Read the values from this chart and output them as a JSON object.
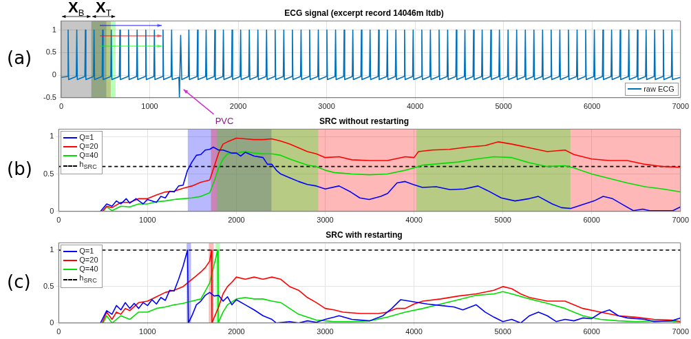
{
  "chart_data": [
    {
      "type": "line",
      "title": "ECG signal (excerpt record 14046m ltdb)",
      "xlim": [
        0,
        7000
      ],
      "ylim": [
        -0.5,
        1.2
      ],
      "xticks": [
        0,
        1000,
        2000,
        3000,
        4000,
        5000,
        6000,
        7000
      ],
      "yticks": [
        -0.5,
        0,
        0.5,
        1
      ],
      "grid": true,
      "legend": "bottom right",
      "annotations": [
        "(a)",
        {
          "text": "X$_{B}$",
          "x": 170,
          "y": 1.2
        },
        {
          "text": "X$_{T}$",
          "x": 478,
          "y": 1.2
        },
        "PVC"
      ],
      "bands": [
        {
          "axis": "x",
          "from": 0,
          "to": 340,
          "color": "#333333"
        },
        {
          "axis": "x",
          "from": 340,
          "to": 510,
          "color": "#0000ff"
        },
        {
          "axis": "x",
          "from": 340,
          "to": 560,
          "color": "#ff0000"
        },
        {
          "axis": "x",
          "from": 340,
          "to": 615,
          "color": "#00ff00"
        }
      ],
      "series": [
        {
          "name": "raw ECG",
          "color": "#0072bd",
          "x": [
            0,
            72,
            78,
            84,
            170,
            176,
            182,
            267,
            273,
            279,
            365,
            371,
            377,
            462,
            468,
            474,
            560,
            566,
            572,
            657,
            663,
            669,
            755,
            761,
            767,
            852,
            858,
            864,
            950,
            956,
            962,
            1047,
            1053,
            1059,
            1145,
            1151,
            1157,
            1242,
            1248,
            1254,
            1330,
            1336,
            1350,
            1362,
            1437,
            1443,
            1449,
            1535,
            1541,
            1547,
            1632,
            1638,
            1644,
            1730,
            1736,
            1742,
            1827,
            1833,
            1839,
            1925,
            1931,
            1937,
            2022,
            2028,
            2034,
            2120,
            2126,
            2132,
            2217,
            2223,
            2229,
            2315,
            2321,
            2327,
            2412,
            2418,
            2424,
            2510,
            2516,
            2522,
            2607,
            2613,
            2619,
            2705,
            2711,
            2717,
            2802,
            2808,
            2814,
            2900,
            2906,
            2912,
            2997,
            3003,
            3009,
            3095,
            3101,
            3107,
            3192,
            3198,
            3204,
            3290,
            3296,
            3302,
            3387,
            3393,
            3399,
            3485,
            3491,
            3497,
            3582,
            3588,
            3594,
            3680,
            3686,
            3692,
            3777,
            3783,
            3789,
            3875,
            3881,
            3887,
            3972,
            3978,
            3984,
            4070,
            4076,
            4082,
            4167,
            4173,
            4179,
            4265,
            4271,
            4277,
            4362,
            4368,
            4374,
            4460,
            4466,
            4472,
            4557,
            4563,
            4569,
            4655,
            4661,
            4667,
            4752,
            4758,
            4764,
            4850,
            4856,
            4862,
            4947,
            4953,
            4959,
            5045,
            5051,
            5057,
            5142,
            5148,
            5154,
            5240,
            5246,
            5252,
            5337,
            5343,
            5349,
            5435,
            5441,
            5447,
            5532,
            5538,
            5544,
            5630,
            5636,
            5642,
            5727,
            5733,
            5739,
            5825,
            5831,
            5837,
            5922,
            5928,
            5934,
            6020,
            6026,
            6032,
            6117,
            6123,
            6129,
            6215,
            6221,
            6227,
            6312,
            6318,
            6324,
            6410,
            6416,
            6422,
            6507,
            6513,
            6519,
            6605,
            6611,
            6617,
            6702,
            6708,
            6714,
            6800,
            6806,
            6812,
            6897,
            6903,
            6909,
            7000
          ],
          "values": [
            -0.05,
            -0.03,
            1,
            -0.1,
            -0.03,
            1,
            -0.1,
            -0.03,
            1,
            -0.1,
            -0.03,
            1,
            -0.1,
            -0.03,
            1,
            -0.1,
            -0.03,
            1,
            -0.1,
            -0.03,
            1,
            -0.1,
            -0.03,
            1,
            -0.1,
            -0.03,
            1,
            -0.1,
            -0.03,
            1,
            -0.1,
            -0.03,
            1,
            -0.1,
            -0.03,
            1,
            -0.1,
            -0.03,
            1,
            -0.1,
            -0.05,
            -0.5,
            0.88,
            -0.1,
            -0.03,
            1,
            -0.1,
            -0.03,
            1,
            -0.1,
            -0.03,
            1,
            -0.1,
            -0.03,
            1,
            -0.1,
            -0.03,
            1,
            -0.1,
            -0.03,
            1,
            -0.1,
            -0.03,
            1,
            -0.1,
            -0.03,
            1,
            -0.1,
            -0.03,
            1,
            -0.1,
            -0.03,
            1,
            -0.1,
            -0.03,
            1,
            -0.1,
            -0.03,
            1,
            -0.1,
            -0.03,
            1,
            -0.1,
            -0.03,
            1,
            -0.1,
            -0.03,
            1,
            -0.1,
            -0.03,
            1,
            -0.1,
            -0.03,
            1,
            -0.1,
            -0.03,
            1,
            -0.1,
            -0.03,
            1,
            -0.1,
            -0.03,
            1,
            -0.1,
            -0.03,
            1,
            -0.1,
            -0.03,
            1,
            -0.1,
            -0.03,
            1,
            -0.1,
            -0.03,
            1,
            -0.1,
            -0.03,
            1,
            -0.1,
            -0.03,
            1,
            -0.1,
            -0.03,
            1,
            -0.1,
            -0.03,
            1,
            -0.1,
            -0.03,
            1,
            -0.1,
            -0.03,
            1,
            -0.1,
            -0.03,
            1,
            -0.1,
            -0.03,
            1,
            -0.1,
            -0.03,
            1,
            -0.1,
            -0.03,
            1,
            -0.1,
            -0.03,
            1,
            -0.1,
            -0.03,
            1,
            -0.1,
            -0.03,
            1,
            -0.1,
            -0.03,
            1,
            -0.1,
            -0.03,
            1,
            -0.1,
            -0.03,
            1,
            -0.1,
            -0.03,
            1,
            -0.1,
            -0.03,
            1,
            -0.1,
            -0.03,
            1,
            -0.1,
            -0.03,
            1,
            -0.1,
            -0.03,
            1,
            -0.1,
            -0.03,
            1,
            -0.1,
            -0.03,
            1,
            -0.1,
            -0.03,
            1,
            -0.1,
            -0.03,
            1,
            -0.1,
            -0.03,
            1,
            -0.1,
            -0.03,
            1,
            -0.1,
            -0.03,
            1,
            -0.1,
            -0.03,
            1,
            -0.1,
            -0.03,
            1,
            -0.1,
            -0.03,
            1,
            -0.1,
            -0.03,
            1,
            -0.1,
            -0.03,
            1,
            -0.1,
            -0.05
          ]
        }
      ]
    },
    {
      "type": "line",
      "title": "SRC without restarting",
      "xlim": [
        0,
        7000
      ],
      "ylim": [
        0,
        1.1
      ],
      "xticks": [
        0,
        1000,
        2000,
        3000,
        4000,
        5000,
        6000,
        7000
      ],
      "yticks": [
        0,
        0.5,
        1
      ],
      "grid": true,
      "legend": "top left",
      "annotations": [
        "(b)"
      ],
      "bands": [
        {
          "axis": "x",
          "from": 1453,
          "to": 2395,
          "color": "#0000ff"
        },
        {
          "axis": "x",
          "from": 1714,
          "to": 7000,
          "color": "#ff0000"
        },
        {
          "axis": "x",
          "from": 1779,
          "to": 2922,
          "color": "#00ff00"
        },
        {
          "axis": "x",
          "from": 4025,
          "to": 5761,
          "color": "#00ff00"
        }
      ],
      "series": [
        {
          "name": "Q=1",
          "color": "#0000ff",
          "x": [
            470,
            540,
            600,
            650,
            700,
            760,
            800,
            870,
            950,
            1000,
            1100,
            1150,
            1200,
            1250,
            1300,
            1350,
            1400,
            1450,
            1500,
            1550,
            1600,
            1650,
            1700,
            1740,
            1800,
            1850,
            1900,
            1950,
            2000,
            2050,
            2100,
            2200,
            2300,
            2350,
            2400,
            2450,
            2500,
            2600,
            2700,
            2800,
            2900,
            3000,
            3156,
            3286,
            3390,
            3495,
            3625,
            3703,
            3808,
            3900,
            3990,
            4094,
            4250,
            4407,
            4564,
            4720,
            4825,
            4982,
            5138,
            5295,
            5400,
            5556,
            5660,
            5765,
            5843,
            6026,
            6130,
            6235,
            6365,
            6470,
            6574,
            6652,
            6809,
            6913,
            7000
          ],
          "values": [
            0,
            0.1,
            0.07,
            0.14,
            0.1,
            0.17,
            0.11,
            0.17,
            0.1,
            0.16,
            0.12,
            0.2,
            0.18,
            0.27,
            0.26,
            0.34,
            0.35,
            0.55,
            0.66,
            0.75,
            0.76,
            0.82,
            0.83,
            0.86,
            0.82,
            0.82,
            0.8,
            0.78,
            0.78,
            0.74,
            0.79,
            0.74,
            0.72,
            0.63,
            0.63,
            0.55,
            0.5,
            0.45,
            0.4,
            0.36,
            0.34,
            0.3,
            0.34,
            0.26,
            0.18,
            0.16,
            0.2,
            0.24,
            0.38,
            0.4,
            0.36,
            0.32,
            0.33,
            0.29,
            0.3,
            0.34,
            0.28,
            0.18,
            0.14,
            0.17,
            0.2,
            0.1,
            0.05,
            0.04,
            0.07,
            0.14,
            0.2,
            0.17,
            0.08,
            0.01,
            0.03,
            0.01,
            0.01,
            0.01,
            0.06
          ]
        },
        {
          "name": "Q=20",
          "color": "#ff0000",
          "x": [
            490,
            540,
            600,
            700,
            800,
            900,
            1000,
            1100,
            1200,
            1300,
            1400,
            1500,
            1600,
            1700,
            1750,
            1800,
            1850,
            1900,
            2000,
            2100,
            2200,
            2300,
            2400,
            2500,
            2600,
            2700,
            2800,
            2900,
            3000,
            3156,
            3300,
            3500,
            3700,
            3900,
            4000,
            4050,
            4200,
            4400,
            4600,
            4800,
            4950,
            5100,
            5300,
            5500,
            5700,
            5800,
            6000,
            6200,
            6400,
            6600,
            6800,
            7000
          ],
          "values": [
            0,
            0.07,
            0.05,
            0.12,
            0.12,
            0.17,
            0.17,
            0.22,
            0.26,
            0.27,
            0.31,
            0.34,
            0.39,
            0.42,
            0.6,
            0.78,
            0.9,
            0.93,
            0.98,
            0.97,
            0.96,
            0.96,
            0.97,
            0.94,
            0.9,
            0.85,
            0.8,
            0.77,
            0.72,
            0.73,
            0.69,
            0.68,
            0.68,
            0.73,
            0.72,
            0.8,
            0.82,
            0.83,
            0.86,
            0.88,
            0.93,
            0.9,
            0.85,
            0.8,
            0.82,
            0.76,
            0.7,
            0.68,
            0.68,
            0.63,
            0.6,
            0.59
          ]
        },
        {
          "name": "Q=40",
          "color": "#00dd00",
          "x": [
            500,
            540,
            600,
            700,
            800,
            900,
            1000,
            1100,
            1200,
            1300,
            1400,
            1500,
            1600,
            1700,
            1750,
            1800,
            1850,
            1900,
            2000,
            2100,
            2200,
            2300,
            2400,
            2500,
            2600,
            2700,
            2800,
            2900,
            3000,
            3100,
            3300,
            3500,
            3700,
            3900,
            4000,
            4100,
            4300,
            4500,
            4700,
            4900,
            5100,
            5300,
            5500,
            5700,
            5800,
            6000,
            6200,
            6400,
            6600,
            6800,
            7000
          ],
          "values": [
            0,
            0.06,
            0.01,
            0.07,
            0.06,
            0.1,
            0.1,
            0.13,
            0.14,
            0.16,
            0.17,
            0.18,
            0.2,
            0.25,
            0.4,
            0.58,
            0.7,
            0.77,
            0.78,
            0.8,
            0.78,
            0.77,
            0.77,
            0.75,
            0.7,
            0.66,
            0.62,
            0.6,
            0.55,
            0.52,
            0.5,
            0.49,
            0.5,
            0.55,
            0.58,
            0.62,
            0.64,
            0.66,
            0.7,
            0.73,
            0.72,
            0.65,
            0.6,
            0.61,
            0.58,
            0.5,
            0.44,
            0.38,
            0.33,
            0.3,
            0.26
          ]
        },
        {
          "name": "h$_{SRC}$",
          "color": "#000000",
          "line_style": "dashed",
          "x": [
            0,
            7000
          ],
          "values": [
            0.6,
            0.6
          ]
        }
      ]
    },
    {
      "type": "line",
      "title": "SRC with restarting",
      "xlim": [
        0,
        7000
      ],
      "ylim": [
        0,
        1.1
      ],
      "xticks": [
        0,
        1000,
        2000,
        3000,
        4000,
        5000,
        6000,
        7000
      ],
      "yticks": [
        0,
        0.5,
        1
      ],
      "grid": true,
      "legend": "top left",
      "annotations": [
        "(c)"
      ],
      "bands": [
        {
          "axis": "x",
          "from": 1440,
          "to": 1490,
          "color": "#0000ff"
        },
        {
          "axis": "x",
          "from": 1690,
          "to": 1745,
          "color": "#ff0000"
        },
        {
          "axis": "x",
          "from": 1765,
          "to": 1815,
          "color": "#00ff00"
        }
      ],
      "series": [
        {
          "name": "Q=1",
          "color": "#0000ff",
          "x": [
            470,
            540,
            600,
            650,
            700,
            750,
            800,
            850,
            900,
            950,
            1000,
            1050,
            1100,
            1150,
            1200,
            1250,
            1300,
            1350,
            1400,
            1450,
            1460,
            1500,
            1550,
            1600,
            1650,
            1700,
            1750,
            1800,
            1850,
            1900,
            1950,
            2000,
            2100,
            2200,
            2300,
            2400,
            2450,
            2600,
            2700,
            2800,
            2900,
            3000,
            3100,
            3156,
            3300,
            3500,
            3650,
            3750,
            3850,
            3950,
            4050,
            4150,
            4300,
            4450,
            4550,
            4700,
            4800,
            4900,
            5000,
            5100,
            5200,
            5300,
            5400,
            5500,
            5600,
            5700,
            5800,
            5900,
            6000,
            6100,
            6200,
            6300,
            6400,
            6600,
            6700,
            6900,
            7000
          ],
          "values": [
            0,
            0.17,
            0.12,
            0.24,
            0.18,
            0.28,
            0.2,
            0.27,
            0.2,
            0.28,
            0.24,
            0.32,
            0.26,
            0.35,
            0.31,
            0.45,
            0.44,
            0.6,
            0.78,
            1,
            0,
            0.1,
            0.25,
            0.3,
            0.38,
            0.42,
            0.37,
            0.38,
            0.3,
            0.36,
            0.25,
            0.32,
            0.25,
            0.18,
            0.1,
            0.05,
            0,
            0.02,
            0,
            0.03,
            0.01,
            0.05,
            0.08,
            0.1,
            0.05,
            0.03,
            0.1,
            0.2,
            0.32,
            0.3,
            0.28,
            0.26,
            0.24,
            0.22,
            0.18,
            0.25,
            0.15,
            0.08,
            0.02,
            0.05,
            0,
            0.1,
            0.15,
            0.1,
            0.02,
            0.05,
            0.03,
            0.07,
            0.06,
            0.14,
            0.18,
            0.1,
            0.07,
            0.05,
            0.02,
            0.03,
            0.07
          ]
        },
        {
          "name": "Q=20",
          "color": "#ff0000",
          "x": [
            490,
            540,
            600,
            650,
            700,
            750,
            800,
            900,
            1000,
            1100,
            1200,
            1300,
            1400,
            1500,
            1550,
            1600,
            1650,
            1700,
            1720,
            1725,
            1800,
            1850,
            1900,
            1950,
            2000,
            2100,
            2200,
            2300,
            2400,
            2500,
            2600,
            2700,
            2800,
            2900,
            3000,
            3100,
            3200,
            3400,
            3600,
            3700,
            3800,
            3900,
            4000,
            4100,
            4300,
            4500,
            4700,
            4900,
            5000,
            5100,
            5200,
            5300,
            5500,
            5700,
            5900,
            6100,
            6300,
            6500,
            6700,
            6900,
            7000
          ],
          "values": [
            0,
            0.15,
            0.05,
            0.15,
            0.12,
            0.2,
            0.17,
            0.28,
            0.3,
            0.36,
            0.42,
            0.45,
            0.5,
            0.6,
            0.65,
            0.7,
            0.76,
            0.85,
            1,
            0,
            0.22,
            0.4,
            0.5,
            0.56,
            0.63,
            0.6,
            0.63,
            0.6,
            0.63,
            0.6,
            0.5,
            0.45,
            0.35,
            0.28,
            0.2,
            0.18,
            0.15,
            0.13,
            0.13,
            0.15,
            0.2,
            0.2,
            0.26,
            0.3,
            0.33,
            0.37,
            0.4,
            0.45,
            0.5,
            0.47,
            0.4,
            0.35,
            0.3,
            0.3,
            0.2,
            0.15,
            0.1,
            0.08,
            0.05,
            0.04,
            0.02
          ]
        },
        {
          "name": "Q=40",
          "color": "#00dd00",
          "x": [
            500,
            540,
            600,
            700,
            800,
            900,
            1000,
            1100,
            1200,
            1300,
            1400,
            1500,
            1600,
            1700,
            1750,
            1790,
            1795,
            1850,
            1900,
            2000,
            2100,
            2200,
            2300,
            2400,
            2500,
            2600,
            2700,
            2800,
            2900,
            3000,
            3100,
            3300,
            3500,
            3700,
            3900,
            4100,
            4300,
            4500,
            4700,
            4900,
            5000,
            5100,
            5300,
            5500,
            5700,
            5900,
            6100,
            6300,
            6500,
            6700,
            7000
          ],
          "values": [
            0,
            0.1,
            0,
            0.1,
            0.05,
            0.15,
            0.15,
            0.2,
            0.22,
            0.25,
            0.27,
            0.3,
            0.33,
            0.55,
            0.8,
            1,
            0,
            0.15,
            0.25,
            0.33,
            0.35,
            0.33,
            0.33,
            0.3,
            0.28,
            0.2,
            0.12,
            0.08,
            0.04,
            0.03,
            0.02,
            0.02,
            0.03,
            0.08,
            0.15,
            0.2,
            0.26,
            0.32,
            0.38,
            0.4,
            0.43,
            0.4,
            0.33,
            0.27,
            0.2,
            0.1,
            0.05,
            0.03,
            0.02,
            0.03,
            0.02
          ]
        },
        {
          "name": "h$_{SRC}$",
          "color": "#000000",
          "line_style": "dashed",
          "x": [
            0,
            7000
          ],
          "values": [
            1,
            1
          ]
        }
      ]
    }
  ]
}
